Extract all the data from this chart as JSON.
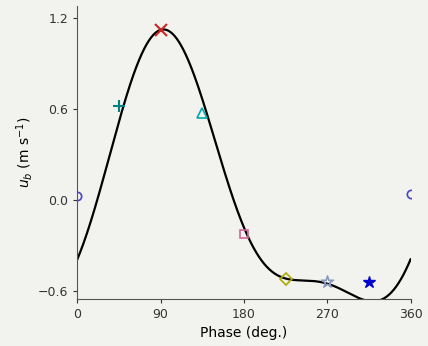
{
  "title": "",
  "xlabel": "Phase (deg.)",
  "ylabel": "$u_b$ (m s$^{-1}$)",
  "xlim": [
    0,
    360
  ],
  "ylim": [
    -0.65,
    1.28
  ],
  "xticks": [
    0,
    90,
    180,
    270,
    360
  ],
  "yticks": [
    -0.6,
    0.0,
    0.6,
    1.2
  ],
  "curve_color": "#000000",
  "curve_linewidth": 1.6,
  "a1": 0.835,
  "b1": -0.105,
  "b2": -0.285,
  "symbols": [
    {
      "phase": 0,
      "value": 0.03,
      "marker": "o",
      "color": "#4444cc",
      "size": 6,
      "facecolor": "none",
      "mew": 1.2
    },
    {
      "phase": 45,
      "value": 0.62,
      "marker": "+",
      "color": "#008080",
      "size": 8,
      "facecolor": "#008080",
      "mew": 1.5
    },
    {
      "phase": 90,
      "value": 1.12,
      "marker": "x",
      "color": "#cc2222",
      "size": 8,
      "facecolor": "#cc2222",
      "mew": 1.5
    },
    {
      "phase": 135,
      "value": 0.57,
      "marker": "^",
      "color": "#00aaaa",
      "size": 7,
      "facecolor": "none",
      "mew": 1.2
    },
    {
      "phase": 180,
      "value": -0.22,
      "marker": "s",
      "color": "#cc6699",
      "size": 6,
      "facecolor": "none",
      "mew": 1.2
    },
    {
      "phase": 225,
      "value": -0.52,
      "marker": "D",
      "color": "#aaaa00",
      "size": 6,
      "facecolor": "none",
      "mew": 1.2
    },
    {
      "phase": 270,
      "value": -0.53,
      "marker": "$☆$",
      "color": "#8899bb",
      "size": 9,
      "facecolor": "none",
      "mew": 0.8
    },
    {
      "phase": 315,
      "value": -0.54,
      "marker": "*",
      "color": "#0000cc",
      "size": 9,
      "facecolor": "#0000cc",
      "mew": 1.0
    },
    {
      "phase": 360,
      "value": 0.04,
      "marker": "o",
      "color": "#4444cc",
      "size": 6,
      "facecolor": "none",
      "mew": 1.2
    }
  ],
  "background_color": "#f2f2ee",
  "spine_color": "#555555",
  "tick_labelsize": 9,
  "xlabel_fontsize": 10,
  "ylabel_fontsize": 10
}
